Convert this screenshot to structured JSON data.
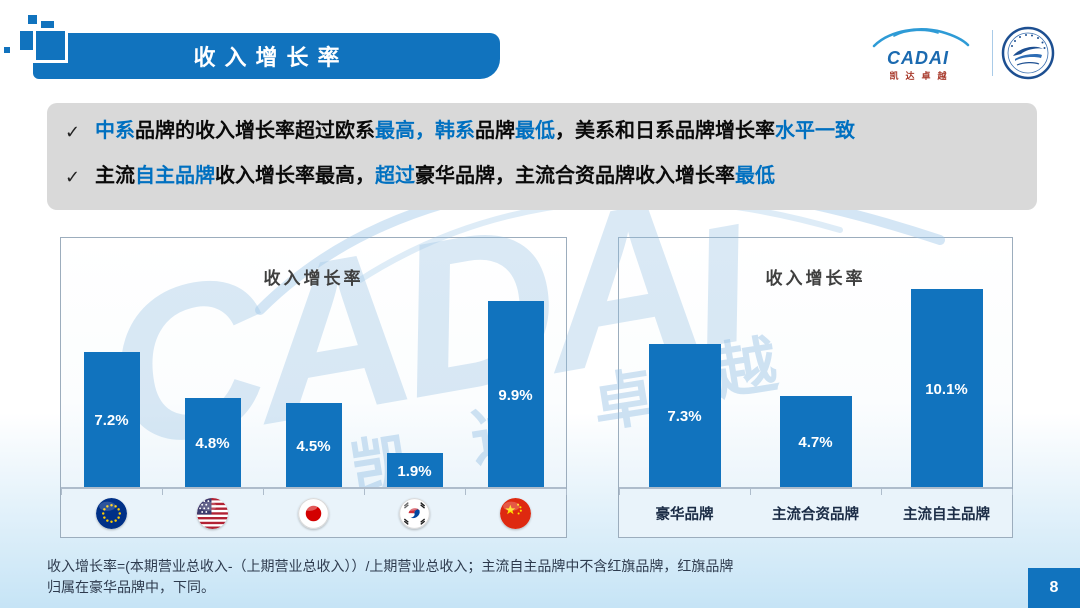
{
  "page": {
    "number": "8"
  },
  "colors": {
    "accent": "#1173BE",
    "highlight_blue": "#0070C0",
    "bar": "#1173BE",
    "bullet_box": "#D9D9D9"
  },
  "header": {
    "title": "收入增长率",
    "brand": {
      "name": "CADAI",
      "sub": "凯达卓越"
    }
  },
  "bullets": [
    {
      "segments": [
        {
          "text": "中系",
          "color": "blue"
        },
        {
          "text": "品牌的收入增长率超过欧系",
          "color": "dark"
        },
        {
          "text": "最高，韩系",
          "color": "blue"
        },
        {
          "text": "品牌",
          "color": "dark"
        },
        {
          "text": "最低",
          "color": "blue"
        },
        {
          "text": "，美系和日系品牌增长率",
          "color": "dark"
        },
        {
          "text": "水平一致",
          "color": "blue"
        }
      ]
    },
    {
      "segments": [
        {
          "text": "主流",
          "color": "dark"
        },
        {
          "text": "自主品牌",
          "color": "blue"
        },
        {
          "text": "收入增长率最高，",
          "color": "dark"
        },
        {
          "text": "超过",
          "color": "blue"
        },
        {
          "text": "豪华品牌，主流合资品牌收入增长率",
          "color": "dark"
        },
        {
          "text": "最低",
          "color": "blue"
        }
      ]
    }
  ],
  "watermark": {
    "text": "CADAi",
    "chars": [
      "凯",
      "达",
      "卓",
      "越"
    ]
  },
  "chart_data": [
    {
      "type": "bar",
      "title": "收入增长率",
      "categories": [
        "EU",
        "US",
        "Japan",
        "Korea",
        "China"
      ],
      "category_icons": [
        "eu-flag-icon",
        "us-flag-icon",
        "japan-flag-icon",
        "korea-flag-icon",
        "china-flag-icon"
      ],
      "values": [
        7.2,
        4.8,
        4.5,
        1.9,
        9.9
      ],
      "labels": [
        "7.2%",
        "4.8%",
        "4.5%",
        "1.9%",
        "9.9%"
      ],
      "unit": "%",
      "ylim": [
        0,
        11
      ],
      "legend": "none",
      "grid": "off"
    },
    {
      "type": "bar",
      "title": "收入增长率",
      "categories": [
        "豪华品牌",
        "主流合资品牌",
        "主流自主品牌"
      ],
      "values": [
        7.3,
        4.7,
        10.1
      ],
      "labels": [
        "7.3%",
        "4.7%",
        "10.1%"
      ],
      "unit": "%",
      "ylim": [
        0,
        11
      ],
      "legend": "none",
      "grid": "off"
    }
  ],
  "footnote": "收入增长率=(本期营业总收入-（上期营业总收入））/上期营业总收入；主流自主品牌中不含红旗品牌，红旗品牌归属在豪华品牌中，下同。"
}
